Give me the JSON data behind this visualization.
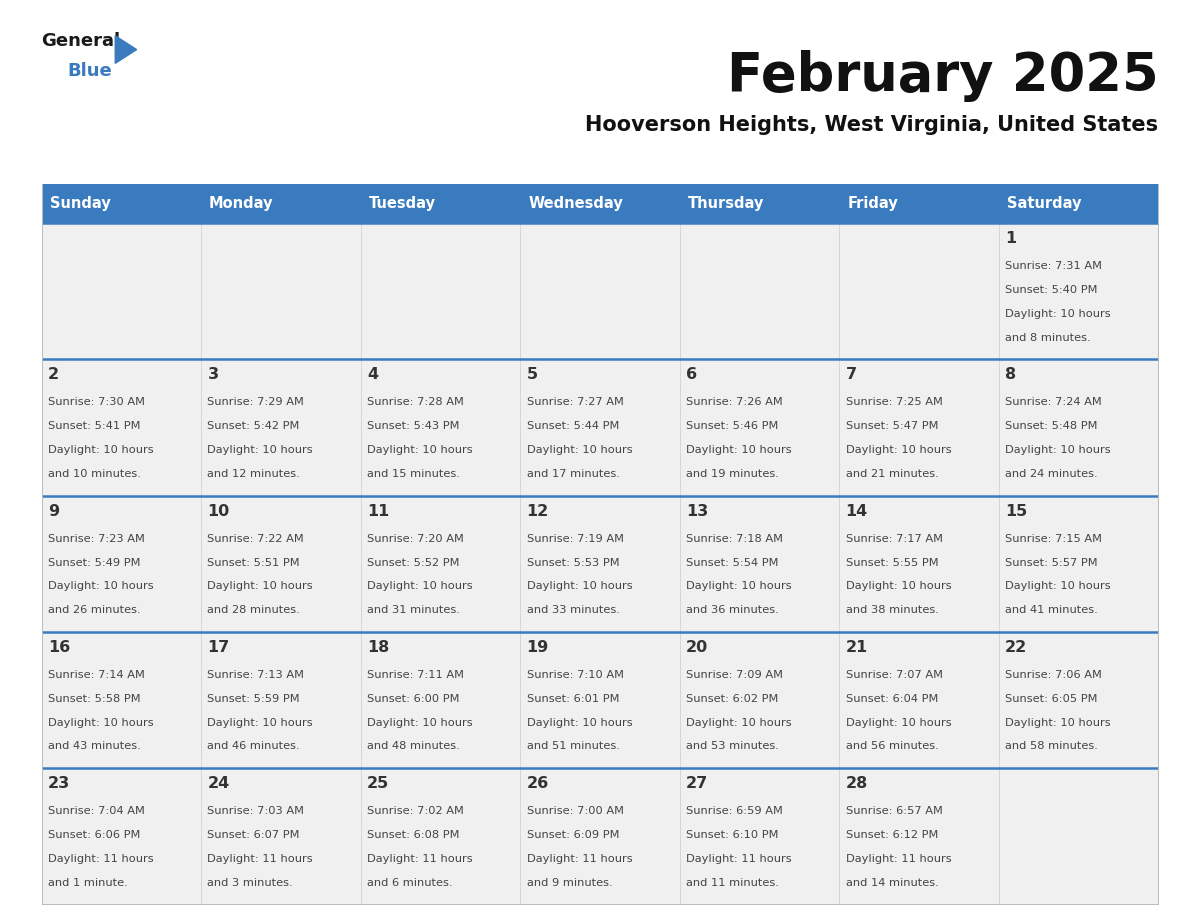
{
  "title": "February 2025",
  "subtitle": "Hooverson Heights, West Virginia, United States",
  "days_of_week": [
    "Sunday",
    "Monday",
    "Tuesday",
    "Wednesday",
    "Thursday",
    "Friday",
    "Saturday"
  ],
  "header_bg": "#3a7bbf",
  "header_text": "#ffffff",
  "cell_bg": "#f0f0f0",
  "divider_color": "#3a7bbf",
  "text_color": "#444444",
  "day_num_color": "#333333",
  "calendar_data": [
    [
      null,
      null,
      null,
      null,
      null,
      null,
      {
        "day": "1",
        "sunrise": "7:31 AM",
        "sunset": "5:40 PM",
        "daylight_line1": "Daylight: 10 hours",
        "daylight_line2": "and 8 minutes."
      }
    ],
    [
      {
        "day": "2",
        "sunrise": "7:30 AM",
        "sunset": "5:41 PM",
        "daylight_line1": "Daylight: 10 hours",
        "daylight_line2": "and 10 minutes."
      },
      {
        "day": "3",
        "sunrise": "7:29 AM",
        "sunset": "5:42 PM",
        "daylight_line1": "Daylight: 10 hours",
        "daylight_line2": "and 12 minutes."
      },
      {
        "day": "4",
        "sunrise": "7:28 AM",
        "sunset": "5:43 PM",
        "daylight_line1": "Daylight: 10 hours",
        "daylight_line2": "and 15 minutes."
      },
      {
        "day": "5",
        "sunrise": "7:27 AM",
        "sunset": "5:44 PM",
        "daylight_line1": "Daylight: 10 hours",
        "daylight_line2": "and 17 minutes."
      },
      {
        "day": "6",
        "sunrise": "7:26 AM",
        "sunset": "5:46 PM",
        "daylight_line1": "Daylight: 10 hours",
        "daylight_line2": "and 19 minutes."
      },
      {
        "day": "7",
        "sunrise": "7:25 AM",
        "sunset": "5:47 PM",
        "daylight_line1": "Daylight: 10 hours",
        "daylight_line2": "and 21 minutes."
      },
      {
        "day": "8",
        "sunrise": "7:24 AM",
        "sunset": "5:48 PM",
        "daylight_line1": "Daylight: 10 hours",
        "daylight_line2": "and 24 minutes."
      }
    ],
    [
      {
        "day": "9",
        "sunrise": "7:23 AM",
        "sunset": "5:49 PM",
        "daylight_line1": "Daylight: 10 hours",
        "daylight_line2": "and 26 minutes."
      },
      {
        "day": "10",
        "sunrise": "7:22 AM",
        "sunset": "5:51 PM",
        "daylight_line1": "Daylight: 10 hours",
        "daylight_line2": "and 28 minutes."
      },
      {
        "day": "11",
        "sunrise": "7:20 AM",
        "sunset": "5:52 PM",
        "daylight_line1": "Daylight: 10 hours",
        "daylight_line2": "and 31 minutes."
      },
      {
        "day": "12",
        "sunrise": "7:19 AM",
        "sunset": "5:53 PM",
        "daylight_line1": "Daylight: 10 hours",
        "daylight_line2": "and 33 minutes."
      },
      {
        "day": "13",
        "sunrise": "7:18 AM",
        "sunset": "5:54 PM",
        "daylight_line1": "Daylight: 10 hours",
        "daylight_line2": "and 36 minutes."
      },
      {
        "day": "14",
        "sunrise": "7:17 AM",
        "sunset": "5:55 PM",
        "daylight_line1": "Daylight: 10 hours",
        "daylight_line2": "and 38 minutes."
      },
      {
        "day": "15",
        "sunrise": "7:15 AM",
        "sunset": "5:57 PM",
        "daylight_line1": "Daylight: 10 hours",
        "daylight_line2": "and 41 minutes."
      }
    ],
    [
      {
        "day": "16",
        "sunrise": "7:14 AM",
        "sunset": "5:58 PM",
        "daylight_line1": "Daylight: 10 hours",
        "daylight_line2": "and 43 minutes."
      },
      {
        "day": "17",
        "sunrise": "7:13 AM",
        "sunset": "5:59 PM",
        "daylight_line1": "Daylight: 10 hours",
        "daylight_line2": "and 46 minutes."
      },
      {
        "day": "18",
        "sunrise": "7:11 AM",
        "sunset": "6:00 PM",
        "daylight_line1": "Daylight: 10 hours",
        "daylight_line2": "and 48 minutes."
      },
      {
        "day": "19",
        "sunrise": "7:10 AM",
        "sunset": "6:01 PM",
        "daylight_line1": "Daylight: 10 hours",
        "daylight_line2": "and 51 minutes."
      },
      {
        "day": "20",
        "sunrise": "7:09 AM",
        "sunset": "6:02 PM",
        "daylight_line1": "Daylight: 10 hours",
        "daylight_line2": "and 53 minutes."
      },
      {
        "day": "21",
        "sunrise": "7:07 AM",
        "sunset": "6:04 PM",
        "daylight_line1": "Daylight: 10 hours",
        "daylight_line2": "and 56 minutes."
      },
      {
        "day": "22",
        "sunrise": "7:06 AM",
        "sunset": "6:05 PM",
        "daylight_line1": "Daylight: 10 hours",
        "daylight_line2": "and 58 minutes."
      }
    ],
    [
      {
        "day": "23",
        "sunrise": "7:04 AM",
        "sunset": "6:06 PM",
        "daylight_line1": "Daylight: 11 hours",
        "daylight_line2": "and 1 minute."
      },
      {
        "day": "24",
        "sunrise": "7:03 AM",
        "sunset": "6:07 PM",
        "daylight_line1": "Daylight: 11 hours",
        "daylight_line2": "and 3 minutes."
      },
      {
        "day": "25",
        "sunrise": "7:02 AM",
        "sunset": "6:08 PM",
        "daylight_line1": "Daylight: 11 hours",
        "daylight_line2": "and 6 minutes."
      },
      {
        "day": "26",
        "sunrise": "7:00 AM",
        "sunset": "6:09 PM",
        "daylight_line1": "Daylight: 11 hours",
        "daylight_line2": "and 9 minutes."
      },
      {
        "day": "27",
        "sunrise": "6:59 AM",
        "sunset": "6:10 PM",
        "daylight_line1": "Daylight: 11 hours",
        "daylight_line2": "and 11 minutes."
      },
      {
        "day": "28",
        "sunrise": "6:57 AM",
        "sunset": "6:12 PM",
        "daylight_line1": "Daylight: 11 hours",
        "daylight_line2": "and 14 minutes."
      },
      null
    ]
  ],
  "logo_general_color": "#1a1a1a",
  "logo_blue_color": "#3a7bbf",
  "logo_triangle_color": "#3a7bbf"
}
